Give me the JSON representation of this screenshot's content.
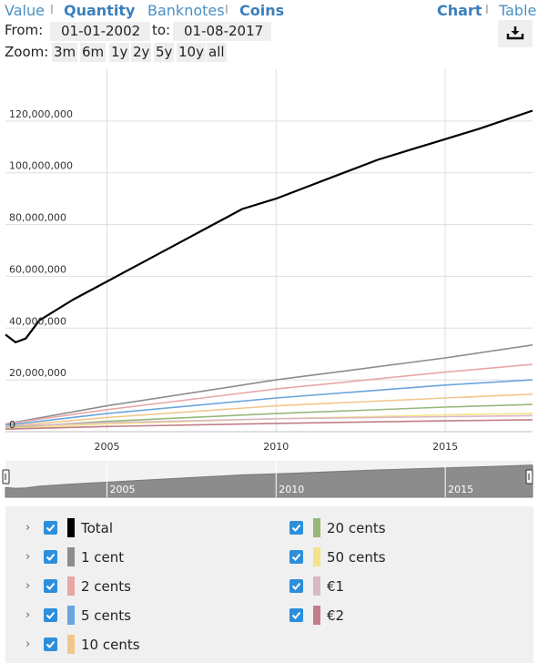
{
  "tabs_left": {
    "value_label": "Value",
    "quantity_label": "Quantity",
    "banknotes_label": "Banknotes",
    "coins_label": "Coins",
    "separator": "I"
  },
  "tabs_right": {
    "chart_label": "Chart",
    "table_label": "Table"
  },
  "range": {
    "from_label": "From:",
    "from_value": "01-01-2002",
    "to_label": "to:",
    "to_value": "01-08-2017"
  },
  "download_icon": "download-icon",
  "zoom": {
    "label": "Zoom:",
    "options": [
      "3m",
      "6m",
      "1y",
      "2y",
      "5y",
      "10y",
      "all"
    ]
  },
  "legend": [
    {
      "name": "Total",
      "color": "#000000",
      "checked": true
    },
    {
      "name": "1 cent",
      "color": "#8c8c8c",
      "checked": true
    },
    {
      "name": "2 cents",
      "color": "#e8a6a6",
      "checked": true
    },
    {
      "name": "5 cents",
      "color": "#6aa5dc",
      "checked": true
    },
    {
      "name": "10 cents",
      "color": "#f2c68a",
      "checked": true
    },
    {
      "name": "20 cents",
      "color": "#96b87a",
      "checked": true
    },
    {
      "name": "50 cents",
      "color": "#f5e38a",
      "checked": true
    },
    {
      "name": "€1",
      "color": "#d9b8c8",
      "checked": true
    },
    {
      "name": "€2",
      "color": "#c27d88",
      "checked": true
    }
  ],
  "chart_data": {
    "type": "line",
    "x_range": [
      2002.0,
      2017.58
    ],
    "ylim": [
      0,
      140000000
    ],
    "y_ticks": [
      0,
      20000000,
      40000000,
      60000000,
      80000000,
      100000000,
      120000000
    ],
    "y_tick_labels": [
      "0",
      "20,000,000",
      "40,000,000",
      "60,000,000",
      "80,000,000",
      "100,000,000",
      "120,000,000"
    ],
    "x_ticks": [
      2005,
      2010,
      2015
    ],
    "x_tick_labels": [
      "2005",
      "2010",
      "2015"
    ],
    "navigator_ticks": [
      2005,
      2010,
      2015
    ],
    "navigator_tick_labels": [
      "2005",
      "2010",
      "2015"
    ],
    "grid": true,
    "series": [
      {
        "name": "Total",
        "color": "#000000",
        "x": [
          2002.0,
          2002.3,
          2002.6,
          2003,
          2004,
          2005,
          2006,
          2007,
          2008,
          2009,
          2010,
          2011,
          2012,
          2013,
          2014,
          2015,
          2016,
          2017.58
        ],
        "y": [
          37500000,
          34500000,
          36000000,
          43000000,
          51000000,
          58000000,
          65000000,
          72000000,
          79000000,
          86000000,
          90000000,
          95000000,
          100000000,
          105000000,
          109000000,
          113000000,
          117000000,
          124000000
        ]
      },
      {
        "name": "1 cent",
        "color": "#8c8c8c",
        "x": [
          2002,
          2005,
          2010,
          2015,
          2017.58
        ],
        "y": [
          3000000,
          10000000,
          20000000,
          28500000,
          33500000
        ]
      },
      {
        "name": "2 cents",
        "color": "#e8a6a6",
        "x": [
          2002,
          2005,
          2010,
          2015,
          2017.58
        ],
        "y": [
          3000000,
          8500000,
          16500000,
          23000000,
          26000000
        ]
      },
      {
        "name": "5 cents",
        "color": "#6aa5dc",
        "x": [
          2002,
          2005,
          2010,
          2015,
          2017.58
        ],
        "y": [
          2500000,
          7000000,
          13000000,
          18000000,
          20000000
        ]
      },
      {
        "name": "10 cents",
        "color": "#f2c68a",
        "x": [
          2002,
          2005,
          2010,
          2015,
          2017.58
        ],
        "y": [
          2000000,
          5500000,
          10000000,
          13000000,
          14500000
        ]
      },
      {
        "name": "20 cents",
        "color": "#96b87a",
        "x": [
          2002,
          2005,
          2010,
          2015,
          2017.58
        ],
        "y": [
          1500000,
          4000000,
          7000000,
          9500000,
          10500000
        ]
      },
      {
        "name": "50 cents",
        "color": "#f5e38a",
        "x": [
          2002,
          2005,
          2010,
          2015,
          2017.58
        ],
        "y": [
          1200000,
          3000000,
          5000000,
          6500000,
          7000000
        ]
      },
      {
        "name": "€1",
        "color": "#d9b8c8",
        "x": [
          2002,
          2005,
          2010,
          2015,
          2017.58
        ],
        "y": [
          2000000,
          3500000,
          5000000,
          5800000,
          6200000
        ]
      },
      {
        "name": "€2",
        "color": "#c27d88",
        "x": [
          2002,
          2005,
          2010,
          2015,
          2017.58
        ],
        "y": [
          1000000,
          2000000,
          3200000,
          4200000,
          4600000
        ]
      }
    ]
  }
}
